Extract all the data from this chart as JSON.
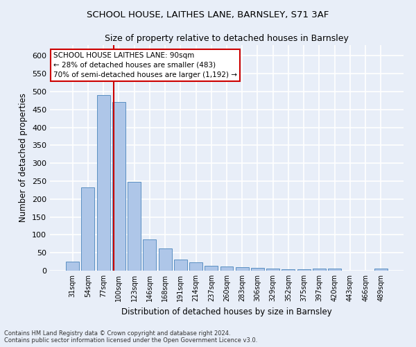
{
  "title1": "SCHOOL HOUSE, LAITHES LANE, BARNSLEY, S71 3AF",
  "title2": "Size of property relative to detached houses in Barnsley",
  "xlabel": "Distribution of detached houses by size in Barnsley",
  "ylabel": "Number of detached properties",
  "categories": [
    "31sqm",
    "54sqm",
    "77sqm",
    "100sqm",
    "123sqm",
    "146sqm",
    "168sqm",
    "191sqm",
    "214sqm",
    "237sqm",
    "260sqm",
    "283sqm",
    "306sqm",
    "329sqm",
    "352sqm",
    "375sqm",
    "397sqm",
    "420sqm",
    "443sqm",
    "466sqm",
    "489sqm"
  ],
  "values": [
    26,
    232,
    491,
    471,
    249,
    88,
    63,
    31,
    23,
    13,
    11,
    10,
    8,
    5,
    3,
    3,
    6,
    6,
    0,
    0,
    5
  ],
  "bar_color": "#aec6e8",
  "bar_edge_color": "#5a8fc2",
  "background_color": "#e8eef8",
  "fig_background_color": "#e8eef8",
  "grid_color": "#ffffff",
  "annotation_box_text_line1": "SCHOOL HOUSE LAITHES LANE: 90sqm",
  "annotation_box_text_line2": "← 28% of detached houses are smaller (483)",
  "annotation_box_text_line3": "70% of semi-detached houses are larger (1,192) →",
  "annotation_box_color": "#ffffff",
  "annotation_box_edge_color": "#cc0000",
  "annotation_line_color": "#cc0000",
  "footnote1": "Contains HM Land Registry data © Crown copyright and database right 2024.",
  "footnote2": "Contains public sector information licensed under the Open Government Licence v3.0.",
  "ylim": [
    0,
    630
  ],
  "yticks": [
    0,
    50,
    100,
    150,
    200,
    250,
    300,
    350,
    400,
    450,
    500,
    550,
    600
  ]
}
